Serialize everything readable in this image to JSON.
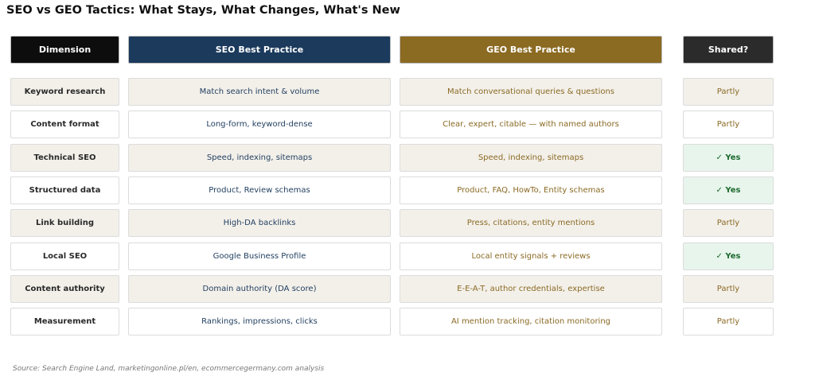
{
  "title": "SEO vs GEO Tactics: What Stays, What Changes, What's New",
  "source": "Source: Search Engine Land, marketingonline.pl/en, ecommercegermany.com analysis",
  "colors": {
    "dimension_header": "#0d0d0d",
    "seo_header": "#1b3a5c",
    "geo_header": "#8b6a22",
    "shared_header": "#2b2b2b",
    "row_alt": "#f3f0ea",
    "yes_bg": "#e8f5ec",
    "yes_text": "#1e6b30"
  },
  "chart_data": {
    "type": "table",
    "columns": [
      "Dimension",
      "SEO Best Practice",
      "GEO Best Practice",
      "Shared?"
    ],
    "rows": [
      [
        "Keyword research",
        "Match search intent & volume",
        "Match conversational queries & questions",
        "Partly"
      ],
      [
        "Content format",
        "Long-form, keyword-dense",
        "Clear, expert, citable — with named authors",
        "Partly"
      ],
      [
        "Technical SEO",
        "Speed, indexing, sitemaps",
        "Speed, indexing, sitemaps",
        "✓ Yes"
      ],
      [
        "Structured data",
        "Product, Review schemas",
        "Product, FAQ, HowTo, Entity schemas",
        "✓ Yes"
      ],
      [
        "Link building",
        "High-DA backlinks",
        "Press, citations, entity mentions",
        "Partly"
      ],
      [
        "Local SEO",
        "Google Business Profile",
        "Local entity signals + reviews",
        "✓ Yes"
      ],
      [
        "Content authority",
        "Domain authority (DA score)",
        "E-E-A-T, author credentials, expertise",
        "Partly"
      ],
      [
        "Measurement",
        "Rankings, impressions, clicks",
        "AI mention tracking, citation monitoring",
        "Partly"
      ]
    ]
  }
}
